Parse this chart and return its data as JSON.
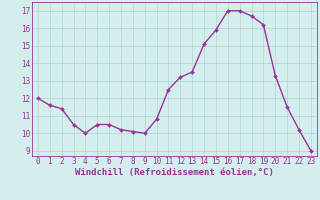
{
  "x": [
    0,
    1,
    2,
    3,
    4,
    5,
    6,
    7,
    8,
    9,
    10,
    11,
    12,
    13,
    14,
    15,
    16,
    17,
    18,
    19,
    20,
    21,
    22,
    23
  ],
  "y": [
    12.0,
    11.6,
    11.4,
    10.5,
    10.0,
    10.5,
    10.5,
    10.2,
    10.1,
    10.0,
    10.8,
    12.5,
    13.2,
    13.5,
    15.1,
    15.9,
    17.0,
    17.0,
    16.7,
    16.2,
    13.3,
    11.5,
    10.2,
    9.0
  ],
  "line_color": "#993399",
  "marker": "D",
  "marker_size": 2.0,
  "linewidth": 1.0,
  "bg_color": "#d4eeee",
  "grid_color": "#b8d8d8",
  "axis_label_color": "#993399",
  "tick_label_color": "#993399",
  "xlabel": "Windchill (Refroidissement éolien,°C)",
  "ylabel": "",
  "xlim": [
    -0.5,
    23.5
  ],
  "ylim": [
    8.7,
    17.5
  ],
  "yticks": [
    9,
    10,
    11,
    12,
    13,
    14,
    15,
    16,
    17
  ],
  "xticks": [
    0,
    1,
    2,
    3,
    4,
    5,
    6,
    7,
    8,
    9,
    10,
    11,
    12,
    13,
    14,
    15,
    16,
    17,
    18,
    19,
    20,
    21,
    22,
    23
  ],
  "xlabel_fontsize": 6.5,
  "tick_fontsize": 5.5
}
